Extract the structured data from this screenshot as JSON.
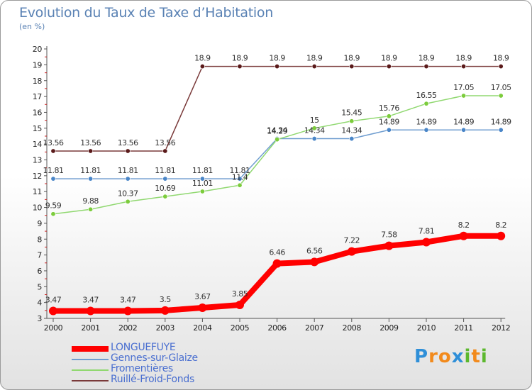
{
  "title": "Evolution du Taux de Taxe d’Habitation",
  "unit_label": "(en %)",
  "logo": {
    "text": "Proxiti",
    "letters": [
      {
        "ch": "P",
        "color": "#2f8fd8"
      },
      {
        "ch": "r",
        "color": "#f28a1c"
      },
      {
        "ch": "o",
        "color": "#f28a1c"
      },
      {
        "ch": "x",
        "color": "#2f8fd8"
      },
      {
        "ch": "i",
        "color": "#5cb82e"
      },
      {
        "ch": "t",
        "color": "#f28a1c"
      },
      {
        "ch": "i",
        "color": "#5cb82e"
      }
    ]
  },
  "chart_data": {
    "type": "line",
    "x": [
      "2000",
      "2001",
      "2002",
      "2003",
      "2004",
      "2005",
      "2006",
      "2007",
      "2008",
      "2009",
      "2010",
      "2011",
      "2012"
    ],
    "ylim": [
      3,
      20
    ],
    "yticks": [
      3,
      4,
      5,
      6,
      7,
      8,
      9,
      10,
      11,
      12,
      13,
      14,
      15,
      16,
      17,
      18,
      19,
      20
    ],
    "grid": false,
    "legend_position": "bottom-left",
    "series": [
      {
        "name": "LONGUEFUYE",
        "color": "#ff0000",
        "width": 8,
        "marker": "#ff0000",
        "values": [
          3.47,
          3.47,
          3.47,
          3.5,
          3.67,
          3.85,
          6.46,
          6.56,
          7.22,
          7.58,
          7.81,
          8.2,
          8.2
        ],
        "labels": [
          "3.47",
          "3.47",
          "3.47",
          "3.5",
          "3.67",
          "3.85",
          "6.46",
          "6.56",
          "7.22",
          "7.58",
          "7.81",
          "8.2",
          "8.2"
        ]
      },
      {
        "name": "Gennes-sur-Glaize",
        "color": "#6f9dd0",
        "width": 1.5,
        "marker": "#4a86c8",
        "values": [
          11.81,
          11.81,
          11.81,
          11.81,
          11.81,
          11.81,
          14.34,
          14.34,
          14.34,
          14.89,
          14.89,
          14.89,
          14.89
        ],
        "labels": [
          "11.81",
          "11.81",
          "11.81",
          "11.81",
          "11.81",
          "11.81",
          "14.34",
          "14.34",
          "14.34",
          "14.89",
          "14.89",
          "14.89",
          "14.89"
        ]
      },
      {
        "name": "Fromentières",
        "color": "#90d870",
        "width": 1.5,
        "marker": "#7ccc3c",
        "values": [
          9.59,
          9.88,
          10.37,
          10.69,
          11.01,
          11.4,
          14.29,
          15,
          15.45,
          15.76,
          16.55,
          17.05,
          17.05
        ],
        "labels": [
          "9.59",
          "9.88",
          "10.37",
          "10.69",
          "11.01",
          "11.4",
          "14.29",
          "15",
          "15.45",
          "15.76",
          "16.55",
          "17.05",
          "17.05"
        ]
      },
      {
        "name": "Ruillé-Froid-Fonds",
        "color": "#7a3a3a",
        "width": 1.5,
        "marker": "#5a1a1a",
        "values": [
          13.56,
          13.56,
          13.56,
          13.56,
          18.9,
          18.9,
          18.9,
          18.9,
          18.9,
          18.9,
          18.9,
          18.9,
          18.9
        ],
        "labels": [
          "13.56",
          "13.56",
          "13.56",
          "13.56",
          "18.9",
          "18.9",
          "18.9",
          "18.9",
          "18.9",
          "18.9",
          "18.9",
          "18.9",
          "18.9"
        ]
      }
    ]
  }
}
